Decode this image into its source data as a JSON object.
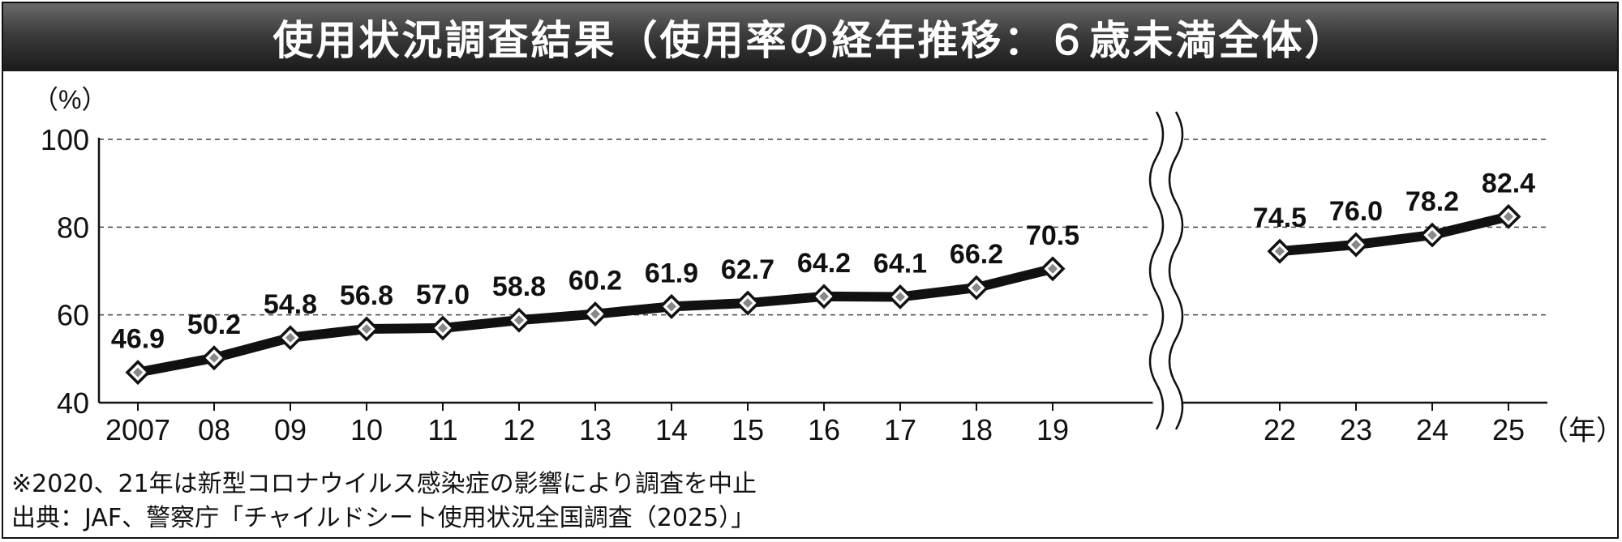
{
  "title": "使用状況調査結果（使用率の経年推移：６歳未満全体）",
  "y_unit_label": "（%）",
  "x_unit_label": "（年）",
  "footnotes": [
    "※2020、21年は新型コロナウイルス感染症の影響により調査を中止",
    "出典：JAF、警察庁「チャイルドシート使用状況全国調査（2025）」"
  ],
  "colors": {
    "line": "#111111",
    "marker_fill": "#888888",
    "grid": "#444444",
    "title_bg": "#2b2b2b"
  },
  "chart_data": {
    "type": "line",
    "title": "使用状況調査結果（使用率の経年推移：６歳未満全体）",
    "ylabel": "（%）",
    "xlabel": "（年）",
    "ylim": [
      40,
      100
    ],
    "yticks": [
      40,
      60,
      80,
      100
    ],
    "grid": true,
    "axis_break_after": "19",
    "segments": [
      {
        "x_labels": [
          "2007",
          "08",
          "09",
          "10",
          "11",
          "12",
          "13",
          "14",
          "15",
          "16",
          "17",
          "18",
          "19"
        ],
        "values": [
          46.9,
          50.2,
          54.8,
          56.8,
          57.0,
          58.8,
          60.2,
          61.9,
          62.7,
          64.2,
          64.1,
          66.2,
          70.5
        ],
        "value_labels": [
          "46.9",
          "50.2",
          "54.8",
          "56.8",
          "57.0",
          "58.8",
          "60.2",
          "61.9",
          "62.7",
          "64.2",
          "64.1",
          "66.2",
          "70.5"
        ]
      },
      {
        "x_labels": [
          "22",
          "23",
          "24",
          "25"
        ],
        "values": [
          74.5,
          76.0,
          78.2,
          82.4
        ],
        "value_labels": [
          "74.5",
          "76.0",
          "78.2",
          "82.4"
        ]
      }
    ]
  }
}
